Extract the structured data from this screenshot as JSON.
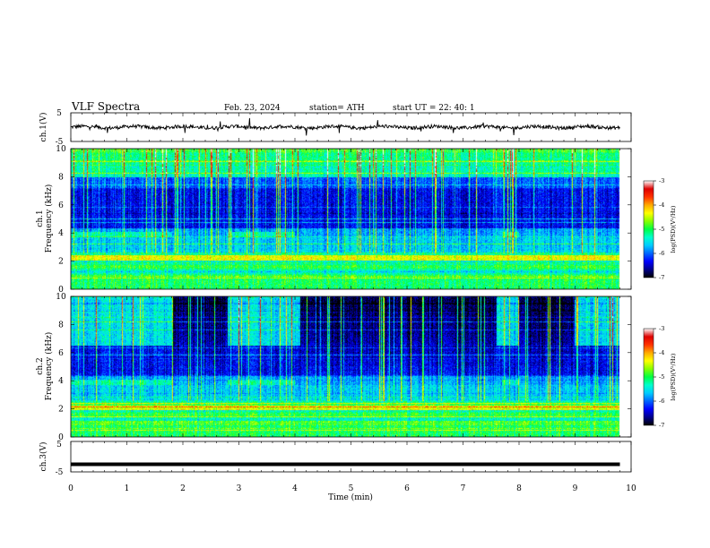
{
  "header": {
    "title": "VLF  Spectra",
    "date": "Feb. 23, 2024",
    "station": "station= ATH",
    "start": "start  UT  =     22: 40: 1"
  },
  "colors": {
    "colormap": [
      "#000000",
      "#00008b",
      "#0000ff",
      "#0066ff",
      "#00ccff",
      "#00ffcc",
      "#00ff44",
      "#88ff00",
      "#ffff00",
      "#ffaa00",
      "#ff3300",
      "#dd0000",
      "#ffffff"
    ]
  },
  "chart_data": [
    {
      "type": "line",
      "title": "",
      "ylabel": "ch.1(V)",
      "xlim": [
        0,
        10
      ],
      "ylim": [
        -5,
        5
      ],
      "yticks": [
        "5",
        "-5"
      ],
      "series": [
        {
          "x_range": [
            0,
            9.8
          ],
          "baseline": 0,
          "noise_amplitude": 0.6
        }
      ]
    },
    {
      "type": "heatmap",
      "ylabel": "ch.1\nFrequency  (kHz)",
      "xlim": [
        0,
        10
      ],
      "ylim": [
        0,
        10
      ],
      "yticks": [
        "0",
        "2",
        "4",
        "6",
        "8",
        "10"
      ],
      "data_x_range": [
        0,
        9.8
      ],
      "colorbar": {
        "label": "log(PSD)(V²/Hz)",
        "range": [
          -7,
          -3
        ],
        "ticks": [
          "-3",
          "-4",
          "-5",
          "-6",
          "-7"
        ]
      },
      "features": {
        "dark_quiet_band_khz": [
          4.3,
          7.2
        ],
        "intense_band_khz": [
          2.0,
          2.4
        ],
        "enhanced_band_khz": [
          3.7,
          4.1
        ],
        "enhanced_band_minutes": [
          [
            0.0,
            1.8
          ],
          [
            2.8,
            4.0
          ],
          [
            7.7,
            8.0
          ]
        ],
        "top_activity_khz": [
          8.0,
          10.0
        ]
      }
    },
    {
      "type": "heatmap",
      "ylabel": "ch.2\nFrequency  (kHz)",
      "xlim": [
        0,
        10
      ],
      "ylim": [
        0,
        10
      ],
      "yticks": [
        "0",
        "2",
        "4",
        "6",
        "8",
        "10"
      ],
      "data_x_range": [
        0,
        9.8
      ],
      "colorbar": {
        "label": "log(PSD)(V²/Hz)",
        "range": [
          -7,
          -3
        ],
        "ticks": [
          "-3",
          "-4",
          "-5",
          "-6",
          "-7"
        ]
      },
      "features": {
        "dark_region_minutes": [
          [
            1.8,
            2.8
          ],
          [
            4.1,
            7.6
          ],
          [
            8.0,
            9.0
          ]
        ],
        "intense_band_khz": [
          1.9,
          2.2
        ],
        "enhanced_band_khz": [
          3.7,
          4.1
        ],
        "enhanced_band_minutes": [
          [
            0.0,
            1.8
          ],
          [
            2.8,
            4.0
          ],
          [
            7.7,
            8.0
          ]
        ],
        "top_activity_khz": [
          6.5,
          10.0
        ]
      }
    },
    {
      "type": "line",
      "ylabel": "ch.3(V)",
      "xlabel": "Time  (min)",
      "xlim": [
        0,
        10
      ],
      "ylim": [
        -5,
        5
      ],
      "yticks": [
        "5",
        "-5"
      ],
      "xticks": [
        "0",
        "1",
        "2",
        "3",
        "4",
        "5",
        "6",
        "7",
        "8",
        "9",
        "10"
      ],
      "series": [
        {
          "x_range": [
            0,
            9.8
          ],
          "value": -2.5
        }
      ]
    }
  ]
}
